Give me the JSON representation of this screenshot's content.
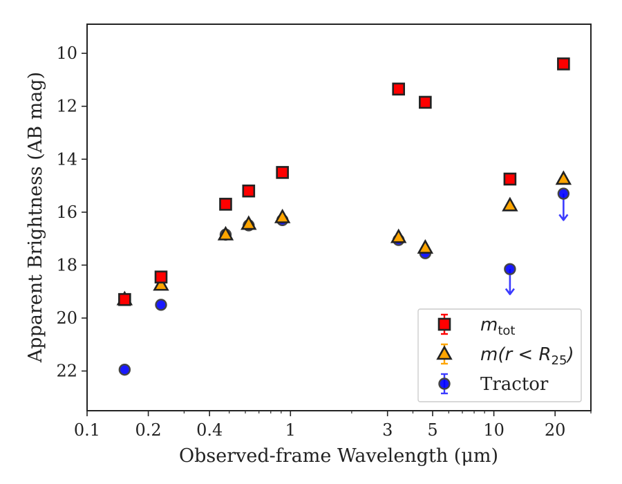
{
  "chart_data": {
    "type": "scatter",
    "xlabel": "Observed-frame Wavelength (μm)",
    "ylabel": "Apparent Brightness (AB mag)",
    "xscale": "log",
    "xlim": [
      0.1,
      30
    ],
    "ylim": [
      23.5,
      8.9
    ],
    "y_inverted": true,
    "x_ticks": [
      0.1,
      0.2,
      0.4,
      1,
      3,
      5,
      10,
      20
    ],
    "x_tick_labels": [
      "0.1",
      "0.2",
      "0.4",
      "1",
      "3",
      "5",
      "10",
      "20"
    ],
    "y_ticks": [
      10,
      12,
      14,
      16,
      18,
      20,
      22
    ],
    "y_tick_labels": [
      "10",
      "12",
      "14",
      "16",
      "18",
      "20",
      "22"
    ],
    "grid": false,
    "legend_position": "lower-right",
    "series": [
      {
        "name": "m_tot",
        "legend_main": "m",
        "legend_sub": "tot",
        "marker": "square",
        "color": "#ff0000",
        "edge_color": "#222222",
        "points": [
          {
            "x": 0.153,
            "y": 19.3
          },
          {
            "x": 0.231,
            "y": 18.45
          },
          {
            "x": 0.48,
            "y": 15.7
          },
          {
            "x": 0.623,
            "y": 15.2
          },
          {
            "x": 0.913,
            "y": 14.5
          },
          {
            "x": 3.4,
            "y": 11.35
          },
          {
            "x": 4.6,
            "y": 11.85
          },
          {
            "x": 12.0,
            "y": 14.75
          },
          {
            "x": 22.0,
            "y": 10.4
          }
        ]
      },
      {
        "name": "m(r < R25)",
        "legend_main": "m(r < R",
        "legend_sub": "25",
        "legend_tail": ")",
        "marker": "triangle",
        "color": "#ffa500",
        "edge_color": "#222222",
        "points": [
          {
            "x": 0.153,
            "y": 19.3
          },
          {
            "x": 0.231,
            "y": 18.75
          },
          {
            "x": 0.48,
            "y": 16.85
          },
          {
            "x": 0.623,
            "y": 16.45
          },
          {
            "x": 0.913,
            "y": 16.2
          },
          {
            "x": 3.4,
            "y": 16.95
          },
          {
            "x": 4.6,
            "y": 17.35
          },
          {
            "x": 12.0,
            "y": 15.75
          },
          {
            "x": 22.0,
            "y": 14.75
          }
        ]
      },
      {
        "name": "Tractor",
        "legend_main": "Tractor",
        "marker": "circle",
        "color": "#0000ff",
        "edge_color": "#444444",
        "points": [
          {
            "x": 0.153,
            "y": 21.95
          },
          {
            "x": 0.231,
            "y": 19.5
          },
          {
            "x": 0.48,
            "y": 16.85
          },
          {
            "x": 0.623,
            "y": 16.5
          },
          {
            "x": 0.913,
            "y": 16.3
          },
          {
            "x": 3.4,
            "y": 17.05
          },
          {
            "x": 4.6,
            "y": 17.55
          },
          {
            "x": 12.0,
            "y": 18.15,
            "upper_limit": true,
            "arrow_to": 19.1
          },
          {
            "x": 22.0,
            "y": 15.3,
            "upper_limit": true,
            "arrow_to": 16.3
          }
        ]
      }
    ]
  }
}
